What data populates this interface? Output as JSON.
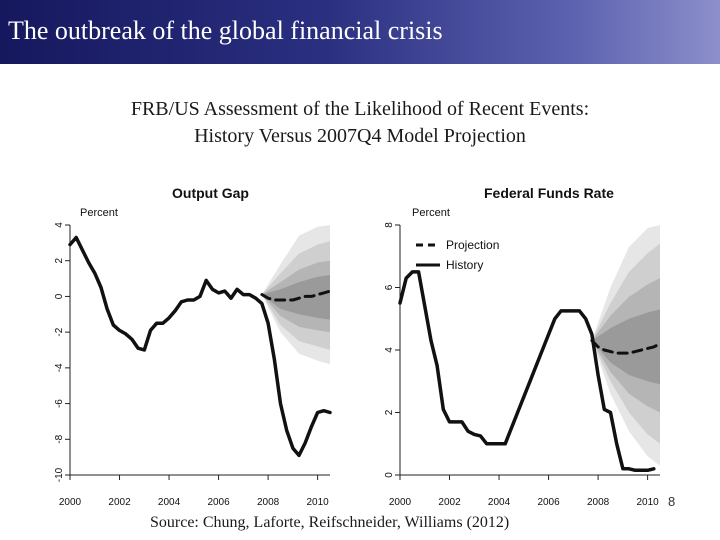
{
  "header": {
    "title": "The outbreak of the global financial crisis"
  },
  "subtitle": {
    "line1": "FRB/US Assessment of the Likelihood of Recent Events:",
    "line2": "History Versus 2007Q4 Model Projection"
  },
  "source": "Source: Chung, Laforte, Reifschneider, Williams (2012)",
  "page_number": "8",
  "colors": {
    "header_start": "#16185e",
    "header_end": "#8c8fcb",
    "line": "#111111",
    "band_outer": "#e6e6e6",
    "band_mid": "#cfcfcf",
    "band_inner": "#b5b5b5",
    "band_core": "#9a9a9a"
  },
  "chart_data": [
    {
      "type": "line",
      "title": "Output Gap",
      "ylabel": "Percent",
      "xlim": [
        2000,
        2010.5
      ],
      "ylim": [
        -10,
        4
      ],
      "yticks": [
        -10,
        -8,
        -6,
        -4,
        -2,
        0,
        2,
        4
      ],
      "xticks": [
        2000,
        2002,
        2004,
        2006,
        2008,
        2010
      ],
      "xtick_labels": [
        "2000",
        "2002",
        "2004",
        "2006",
        "2008",
        "2010"
      ],
      "legend": null,
      "series": [
        {
          "kind": "history",
          "x": [
            2000,
            2000.25,
            2000.5,
            2000.75,
            2001,
            2001.25,
            2001.5,
            2001.75,
            2002,
            2002.25,
            2002.5,
            2002.75,
            2003,
            2003.25,
            2003.5,
            2003.75,
            2004,
            2004.25,
            2004.5,
            2004.75,
            2005,
            2005.25,
            2005.5,
            2005.75,
            2006,
            2006.25,
            2006.5,
            2006.75,
            2007,
            2007.25,
            2007.5,
            2007.75,
            2008,
            2008.25,
            2008.5,
            2008.75,
            2009,
            2009.25,
            2009.5,
            2009.75,
            2010,
            2010.25,
            2010.5
          ],
          "y": [
            2.9,
            3.3,
            2.6,
            1.9,
            1.3,
            0.5,
            -0.7,
            -1.6,
            -1.9,
            -2.1,
            -2.4,
            -2.9,
            -3.0,
            -1.9,
            -1.5,
            -1.5,
            -1.2,
            -0.8,
            -0.3,
            -0.2,
            -0.2,
            0.0,
            0.9,
            0.4,
            0.2,
            0.3,
            -0.1,
            0.4,
            0.1,
            0.1,
            -0.1,
            -0.4,
            -1.5,
            -3.5,
            -6.0,
            -7.5,
            -8.5,
            -8.9,
            -8.2,
            -7.3,
            -6.5,
            -6.4,
            -6.5
          ]
        },
        {
          "kind": "projection",
          "x": [
            2007.75,
            2008,
            2008.25,
            2008.5,
            2008.75,
            2009,
            2009.25,
            2009.5,
            2009.75,
            2010,
            2010.25,
            2010.5
          ],
          "y": [
            0.1,
            -0.1,
            -0.2,
            -0.2,
            -0.2,
            -0.2,
            -0.1,
            0.0,
            0.0,
            0.1,
            0.2,
            0.3
          ]
        }
      ],
      "bands": [
        {
          "level": "outer",
          "x": [
            2007.75,
            2008.5,
            2009.25,
            2010,
            2010.5
          ],
          "upper": [
            0.1,
            1.8,
            3.4,
            3.9,
            4.0
          ],
          "lower": [
            0.1,
            -2.0,
            -3.2,
            -3.6,
            -3.8
          ]
        },
        {
          "level": "mid",
          "x": [
            2007.75,
            2008.5,
            2009.25,
            2010,
            2010.5
          ],
          "upper": [
            0.1,
            1.3,
            2.4,
            2.9,
            3.1
          ],
          "lower": [
            0.1,
            -1.6,
            -2.5,
            -2.8,
            -3.0
          ]
        },
        {
          "level": "inner",
          "x": [
            2007.75,
            2008.5,
            2009.25,
            2010,
            2010.5
          ],
          "upper": [
            0.1,
            0.8,
            1.5,
            1.9,
            2.0
          ],
          "lower": [
            0.1,
            -1.1,
            -1.7,
            -1.9,
            -2.0
          ]
        },
        {
          "level": "core",
          "x": [
            2007.75,
            2008.5,
            2009.25,
            2010,
            2010.5
          ],
          "upper": [
            0.1,
            0.4,
            0.8,
            1.1,
            1.2
          ],
          "lower": [
            0.1,
            -0.7,
            -1.0,
            -1.2,
            -1.3
          ]
        }
      ]
    },
    {
      "type": "line",
      "title": "Federal Funds Rate",
      "ylabel": "Percent",
      "xlim": [
        2000,
        2010.5
      ],
      "ylim": [
        0,
        8
      ],
      "yticks": [
        0,
        2,
        4,
        6,
        8
      ],
      "xticks": [
        2000,
        2002,
        2004,
        2006,
        2008,
        2010
      ],
      "xtick_labels": [
        "2000",
        "2002",
        "2004",
        "2006",
        "2008",
        "2010"
      ],
      "legend": [
        "Projection",
        "History"
      ],
      "legend_position": "top-left",
      "series": [
        {
          "kind": "history",
          "name": "History",
          "x": [
            2000,
            2000.25,
            2000.5,
            2000.75,
            2001,
            2001.25,
            2001.5,
            2001.75,
            2002,
            2002.25,
            2002.5,
            2002.75,
            2003,
            2003.25,
            2003.5,
            2003.75,
            2004,
            2004.25,
            2004.5,
            2004.75,
            2005,
            2005.25,
            2005.5,
            2005.75,
            2006,
            2006.25,
            2006.5,
            2006.75,
            2007,
            2007.25,
            2007.5,
            2007.75,
            2008,
            2008.25,
            2008.5,
            2008.75,
            2009,
            2009.25,
            2009.5,
            2009.75,
            2010,
            2010.25
          ],
          "y": [
            5.5,
            6.3,
            6.5,
            6.5,
            5.4,
            4.3,
            3.5,
            2.1,
            1.7,
            1.7,
            1.7,
            1.4,
            1.3,
            1.25,
            1.0,
            1.0,
            1.0,
            1.0,
            1.5,
            2.0,
            2.5,
            3.0,
            3.5,
            4.0,
            4.5,
            5.0,
            5.25,
            5.25,
            5.25,
            5.25,
            5.0,
            4.5,
            3.2,
            2.1,
            2.0,
            1.0,
            0.2,
            0.2,
            0.15,
            0.15,
            0.15,
            0.2
          ]
        },
        {
          "kind": "projection",
          "name": "Projection",
          "x": [
            2007.75,
            2008,
            2008.25,
            2008.5,
            2008.75,
            2009,
            2009.25,
            2009.5,
            2009.75,
            2010,
            2010.25,
            2010.5
          ],
          "y": [
            4.3,
            4.1,
            4.0,
            3.95,
            3.9,
            3.9,
            3.9,
            3.95,
            4.0,
            4.05,
            4.1,
            4.2
          ]
        }
      ],
      "bands": [
        {
          "level": "outer",
          "x": [
            2007.75,
            2008.5,
            2009.25,
            2010,
            2010.5
          ],
          "upper": [
            4.3,
            6.0,
            7.3,
            7.9,
            8.0
          ],
          "lower": [
            4.3,
            2.6,
            1.4,
            0.6,
            0.3
          ]
        },
        {
          "level": "mid",
          "x": [
            2007.75,
            2008.5,
            2009.25,
            2010,
            2010.5
          ],
          "upper": [
            4.3,
            5.5,
            6.5,
            7.1,
            7.4
          ],
          "lower": [
            4.3,
            3.0,
            2.0,
            1.3,
            1.0
          ]
        },
        {
          "level": "inner",
          "x": [
            2007.75,
            2008.5,
            2009.25,
            2010,
            2010.5
          ],
          "upper": [
            4.3,
            5.1,
            5.7,
            6.1,
            6.3
          ],
          "lower": [
            4.3,
            3.3,
            2.6,
            2.2,
            2.0
          ]
        },
        {
          "level": "core",
          "x": [
            2007.75,
            2008.5,
            2009.25,
            2010,
            2010.5
          ],
          "upper": [
            4.3,
            4.7,
            5.0,
            5.2,
            5.3
          ],
          "lower": [
            4.3,
            3.6,
            3.2,
            3.0,
            2.9
          ]
        }
      ]
    }
  ]
}
